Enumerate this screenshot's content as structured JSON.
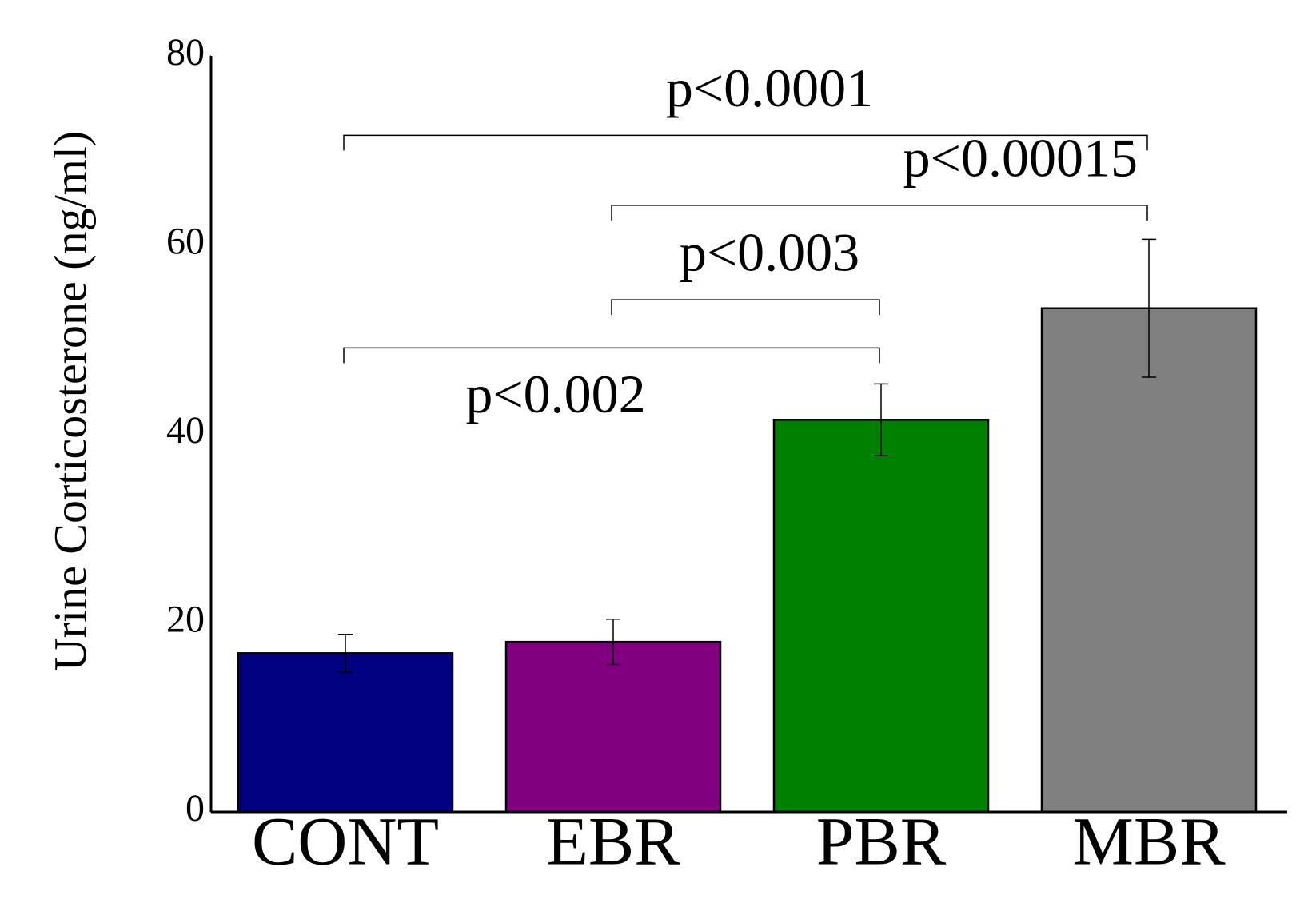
{
  "chart_data": {
    "type": "bar",
    "y_label": "Urine Corticosterone (ng/ml)",
    "categories": [
      "CONT",
      "EBR",
      "PBR",
      "MBR"
    ],
    "values": [
      16.8,
      18.0,
      41.5,
      53.3
    ],
    "errors": [
      2.0,
      2.4,
      3.8,
      7.3
    ],
    "colors": [
      "#000080",
      "#800080",
      "#008000",
      "#808080"
    ],
    "ylim": [
      0,
      80
    ],
    "yticks": [
      0,
      20,
      40,
      60,
      80
    ],
    "annotations": [
      {
        "text": "p<0.0001",
        "groups": [
          0,
          3
        ],
        "y": 71.6
      },
      {
        "text": "p<0.00015",
        "groups": [
          1,
          3
        ],
        "y": 64.2,
        "label_align": "right"
      },
      {
        "text": "p<0.003",
        "groups": [
          1,
          2
        ],
        "y": 54.2
      },
      {
        "text": "p<0.002",
        "groups": [
          0,
          2
        ],
        "y": 49.1,
        "label_position": "below"
      }
    ]
  }
}
